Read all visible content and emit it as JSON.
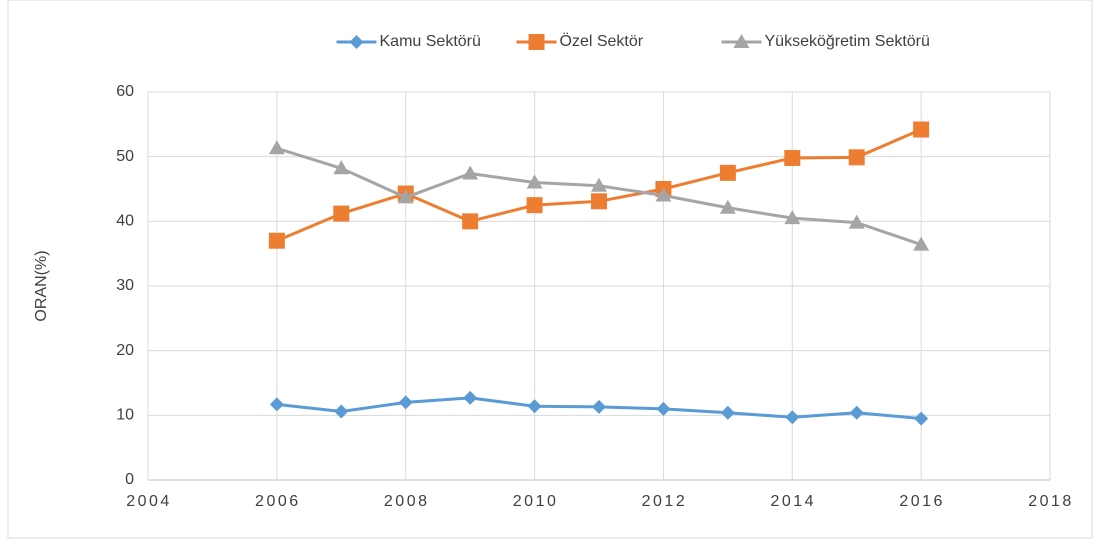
{
  "chart_data": {
    "type": "line",
    "y_label": "ORAN(%)",
    "x": [
      2006,
      2007,
      2008,
      2009,
      2010,
      2011,
      2012,
      2013,
      2014,
      2015,
      2016
    ],
    "series": [
      {
        "name": "Kamu Sektörü",
        "color": "#5b9bd5",
        "marker": "diamond",
        "values": [
          11.7,
          10.6,
          12.0,
          12.7,
          11.4,
          11.3,
          11.0,
          10.4,
          9.7,
          10.4,
          9.5
        ]
      },
      {
        "name": "Özel Sektör",
        "color": "#ed7d31",
        "marker": "square",
        "values": [
          37.0,
          41.2,
          44.3,
          40.0,
          42.5,
          43.1,
          45.0,
          47.5,
          49.8,
          49.9,
          54.2
        ]
      },
      {
        "name": "Yükseköğretim Sektörü",
        "color": "#a5a5a5",
        "marker": "triangle",
        "values": [
          51.3,
          48.2,
          43.7,
          47.4,
          46.0,
          45.5,
          44.0,
          42.1,
          40.5,
          39.8,
          36.4
        ]
      }
    ],
    "xlim": [
      2004,
      2018
    ],
    "xticks": [
      2004,
      2006,
      2008,
      2010,
      2012,
      2014,
      2016,
      2018
    ],
    "ylim": [
      0,
      60
    ],
    "yticks": [
      0,
      10,
      20,
      30,
      40,
      50,
      60
    ],
    "grid": true,
    "legend": "top"
  }
}
